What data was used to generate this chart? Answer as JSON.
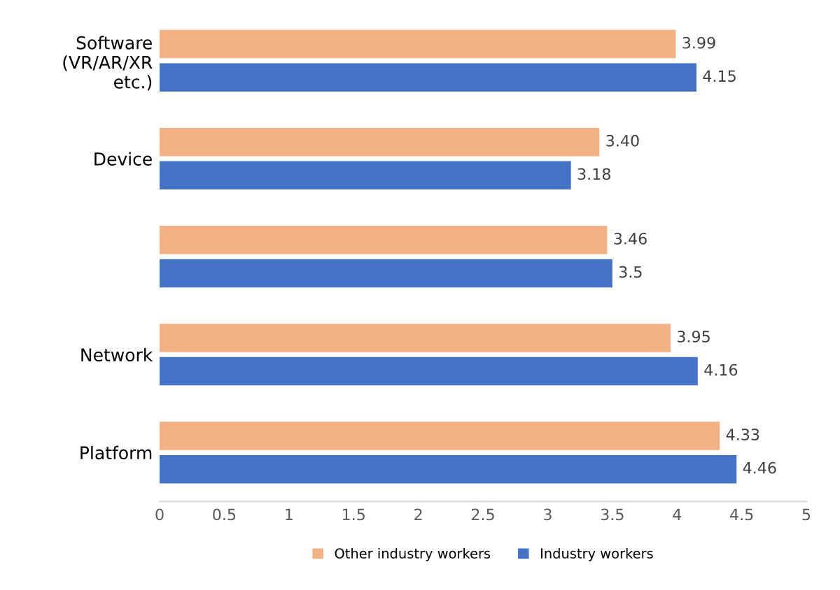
{
  "chart_data": {
    "type": "bar",
    "orientation": "horizontal",
    "categories": [
      "Software\n(VR/AR/XR\netc.)",
      "Device",
      null,
      "Network",
      "Platform"
    ],
    "series": [
      {
        "name": "Other industry workers",
        "color": "#f4b183",
        "values": [
          3.99,
          3.4,
          3.46,
          3.95,
          4.33
        ],
        "value_labels": [
          "3.99",
          "3.40",
          "3.46",
          "3.95",
          "4.33"
        ]
      },
      {
        "name": "Industry workers",
        "color": "#4472c4",
        "values": [
          4.15,
          3.18,
          3.5,
          4.16,
          4.46
        ],
        "value_labels": [
          "4.15",
          "3.18",
          "3.5",
          "4.16",
          "4.46"
        ]
      }
    ],
    "xlim": [
      0,
      5
    ],
    "xticks": [
      0,
      0.5,
      1,
      1.5,
      2,
      2.5,
      3,
      3.5,
      4,
      4.5,
      5
    ],
    "grid": false,
    "legend": "bottom"
  }
}
